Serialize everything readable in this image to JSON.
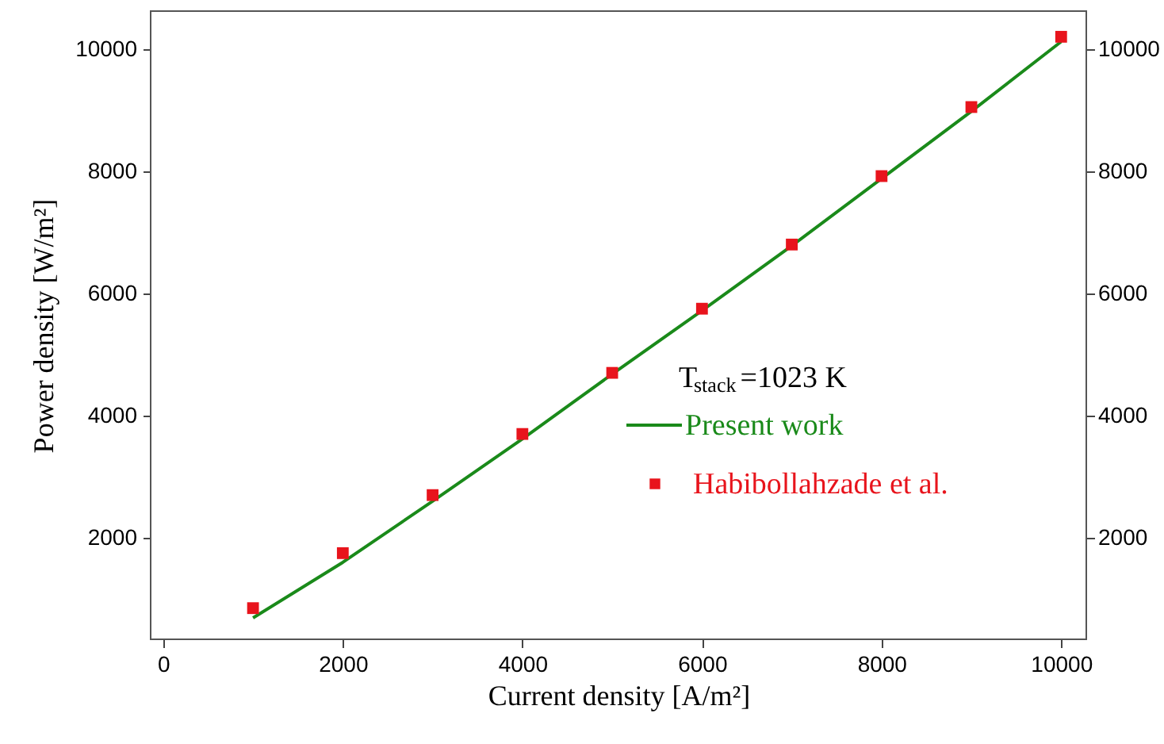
{
  "chart_data": {
    "type": "line",
    "xlabel": "Current density  [A/m²]",
    "ylabel": "Power density  [W/m²]",
    "x": [
      1000,
      2000,
      3000,
      4000,
      5000,
      6000,
      7000,
      8000,
      9000,
      10000
    ],
    "series": [
      {
        "name": "Present work",
        "color": "#1a8a1a",
        "marker": "none",
        "line_style": "solid",
        "values": [
          690,
          1600,
          2600,
          3620,
          4680,
          5720,
          6780,
          7880,
          8980,
          10120
        ]
      },
      {
        "name": "Habibollahzade et al.",
        "color": "#e8141c",
        "type": "scatter",
        "marker": "square",
        "values": [
          850,
          1750,
          2700,
          3700,
          4700,
          5750,
          6800,
          7920,
          9050,
          10200
        ]
      }
    ],
    "xlim": [
      -140,
      10280
    ],
    "xticks": [
      0,
      2000,
      4000,
      6000,
      8000,
      10000
    ],
    "ylim": [
      340,
      10620
    ],
    "yticks": [
      2000,
      4000,
      6000,
      8000,
      10000
    ],
    "y2lim": [
      340,
      10620
    ],
    "y2ticks": [
      2000,
      4000,
      6000,
      8000,
      10000
    ],
    "annotations": [
      "T$_{stack}$=1023 K"
    ],
    "legend": "right",
    "grid": false
  }
}
